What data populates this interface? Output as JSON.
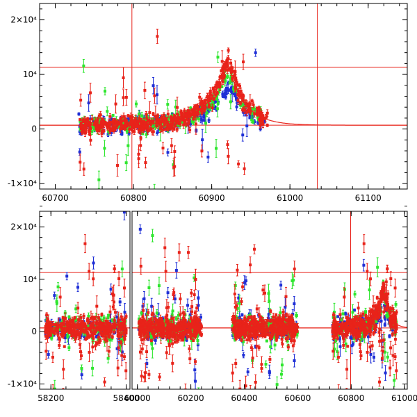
{
  "chart_data": [
    {
      "type": "scatter",
      "name": "top-panel-zoom",
      "x_range": [
        60680,
        61150
      ],
      "y_range": [
        -11000,
        23000
      ],
      "x_ticks": [
        {
          "value": 60700,
          "label": "60700"
        },
        {
          "value": 60800,
          "label": "60800"
        },
        {
          "value": 60900,
          "label": "60900"
        },
        {
          "value": 61000,
          "label": "61000"
        },
        {
          "value": 61100,
          "label": "61100"
        }
      ],
      "y_ticks": [
        {
          "value": -10000,
          "label": "-1×10⁴"
        },
        {
          "value": 0,
          "label": "0"
        },
        {
          "value": 10000,
          "label": "10⁴"
        },
        {
          "value": 20000,
          "label": "2×10⁴"
        }
      ],
      "horizontal_lines": [
        700,
        11300
      ],
      "vertical_lines": [
        60798,
        61035
      ],
      "model_curve": {
        "baseline": 700,
        "peak_x": 60921,
        "peak_y": 12000,
        "tau_rise": 26,
        "tau_fall": 21
      },
      "series": [
        {
          "name": "red",
          "color": "#e8231a",
          "x_range": [
            60730,
            60972
          ]
        },
        {
          "name": "green",
          "color": "#2ee62e",
          "x_range": [
            60730,
            60965
          ]
        },
        {
          "name": "blue",
          "color": "#1f2fd6",
          "x_range": [
            60730,
            60968
          ]
        }
      ]
    },
    {
      "type": "scatter",
      "name": "bottom-panel-full",
      "segments": [
        {
          "x_range": [
            58170,
            58410
          ],
          "x_ticks": [
            {
              "value": 58200,
              "label": "58200"
            },
            {
              "value": 58400,
              "label": "58400"
            }
          ],
          "data_x": [
            58185,
            58400
          ]
        },
        {
          "x_range": [
            59980,
            61010
          ],
          "x_ticks": [
            {
              "value": 60000,
              "label": "60000"
            },
            {
              "value": 60200,
              "label": "60200"
            },
            {
              "value": 60400,
              "label": "60400"
            },
            {
              "value": 60600,
              "label": "60600"
            },
            {
              "value": 60800,
              "label": "60800"
            },
            {
              "value": 61000,
              "label": "61000"
            }
          ],
          "data_x": [
            [
              60005,
              60240
            ],
            [
              60355,
              60600
            ],
            [
              60730,
              60970
            ]
          ]
        }
      ],
      "y_range": [
        -11000,
        23000
      ],
      "y_ticks": [
        {
          "value": -10000,
          "label": "-1×10⁴"
        },
        {
          "value": 0,
          "label": "0"
        },
        {
          "value": 10000,
          "label": "10⁴"
        },
        {
          "value": 20000,
          "label": "2×10⁴"
        }
      ],
      "horizontal_lines": [
        700,
        11300
      ],
      "vertical_lines": [
        60798
      ],
      "model_curve": {
        "baseline": 700,
        "peak_x": 60921,
        "peak_y": 8200,
        "tau_rise": 26,
        "tau_fall": 21
      },
      "series": [
        {
          "name": "red",
          "color": "#e8231a"
        },
        {
          "name": "green",
          "color": "#2ee62e"
        },
        {
          "name": "blue",
          "color": "#1f2fd6"
        }
      ]
    }
  ]
}
